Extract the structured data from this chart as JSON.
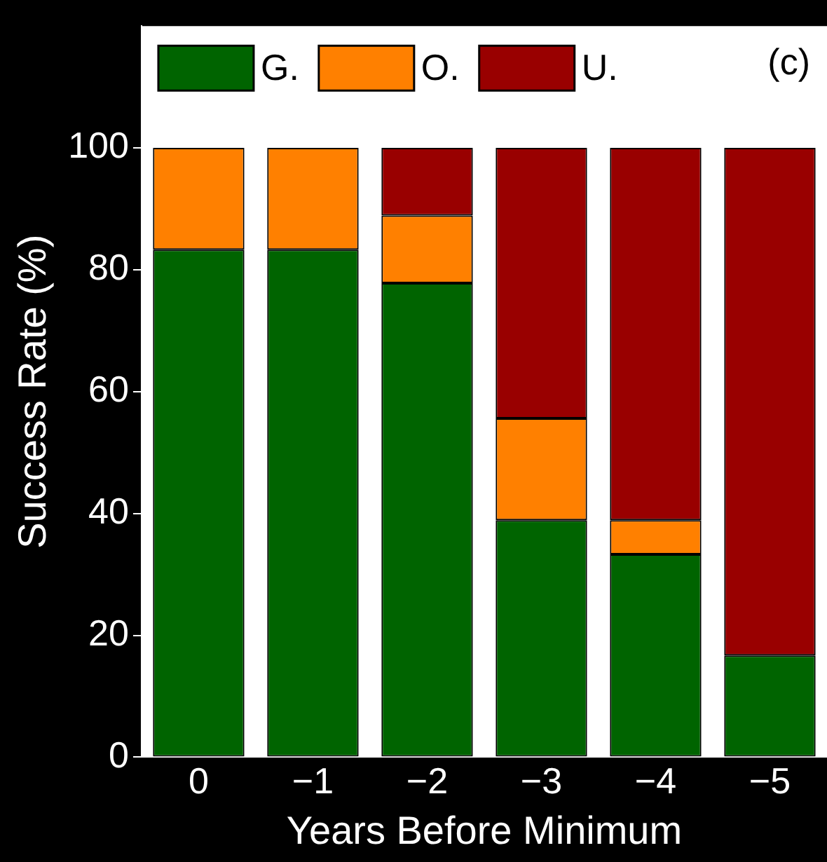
{
  "chart_data": {
    "type": "bar",
    "stacked": true,
    "xlabel": "Years Before Minimum",
    "ylabel": "Success Rate (%)",
    "categories": [
      "0",
      "−1",
      "−2",
      "−3",
      "−4",
      "−5"
    ],
    "series": [
      {
        "name": "G.",
        "color": "#006400",
        "values": [
          83.3,
          83.3,
          77.8,
          38.9,
          33.3,
          16.7
        ]
      },
      {
        "name": "O.",
        "color": "#ff8000",
        "values": [
          16.7,
          16.7,
          11.1,
          16.7,
          5.6,
          0
        ]
      },
      {
        "name": "U.",
        "color": "#990000",
        "values": [
          0,
          0,
          11.1,
          44.4,
          61.1,
          83.3
        ]
      }
    ],
    "ylim": [
      0,
      120
    ],
    "yticks": [
      0,
      20,
      40,
      60,
      80,
      100
    ],
    "grid": false,
    "legend": "top",
    "annotations": [
      "(c)"
    ]
  }
}
